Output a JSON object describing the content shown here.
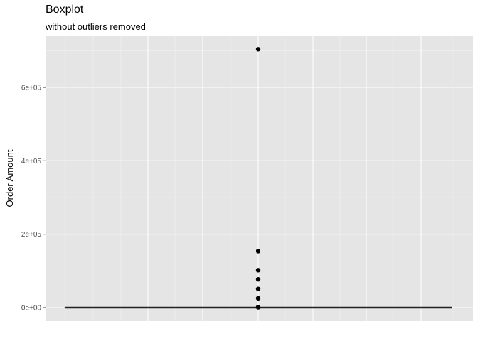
{
  "chart_data": {
    "type": "boxplot",
    "title": "Boxplot",
    "subtitle": "without outliers removed",
    "xlabel": "",
    "ylabel": "Order Amount",
    "ylim": [
      -35000,
      730000
    ],
    "yticks": [
      0,
      200000,
      400000,
      600000
    ],
    "ytick_labels": [
      "0e+00",
      "2e+05",
      "4e+05",
      "6e+05"
    ],
    "grid": true,
    "box": {
      "min": 0,
      "q1": 0,
      "median": 0,
      "q3": 0,
      "max": 0
    },
    "outliers": [
      704000,
      154000,
      102000,
      77000,
      51000,
      25500,
      1500,
      800
    ]
  }
}
